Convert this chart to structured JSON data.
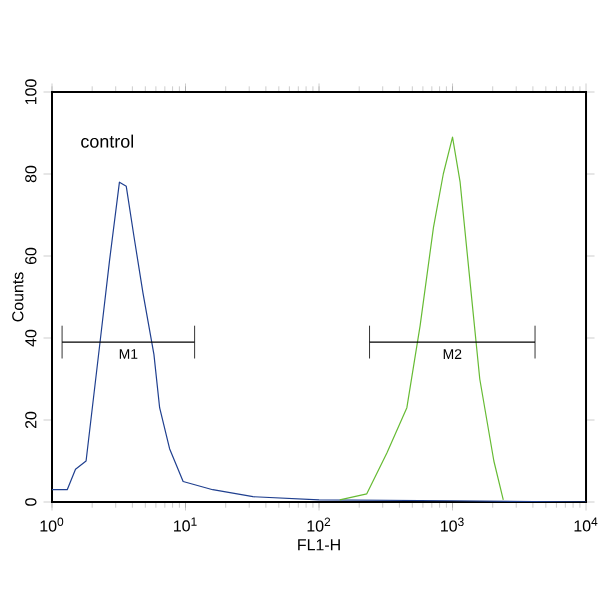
{
  "chart_data": {
    "type": "line",
    "xlabel": "FL1-H",
    "ylabel": "Counts",
    "log": "x",
    "xlim": [
      1,
      10000
    ],
    "ylim": [
      0,
      100
    ],
    "xticks": [
      {
        "value": 1,
        "label": "10$^{0}$"
      },
      {
        "value": 10,
        "label": "10$^{1}$"
      },
      {
        "value": 100,
        "label": "10$^{2}$"
      },
      {
        "value": 1000,
        "label": "10$^{3}$"
      },
      {
        "value": 10000,
        "label": "10$^{4}$"
      }
    ],
    "yticks": [
      0,
      20,
      40,
      60,
      80,
      100
    ],
    "annotations": [
      "control"
    ],
    "series": [
      {
        "color": "#1f3f8f",
        "x": [
          1,
          1.3,
          1.5,
          1.8,
          2.3,
          2.7,
          3.2,
          3.6,
          4.1,
          4.8,
          5.8,
          6.4,
          7.6,
          9.6,
          16,
          32,
          100,
          1000,
          10000
        ],
        "values": [
          3,
          3,
          8,
          10,
          39.5,
          59,
          78,
          77,
          65,
          51,
          36,
          23,
          13,
          5,
          3,
          1.3,
          0.5,
          0.3,
          0
        ]
      },
      {
        "color": "#66bb33",
        "x": [
          143,
          228,
          323,
          455,
          572,
          720,
          853,
          1000,
          1140,
          1350,
          1600,
          2040,
          2400
        ],
        "values": [
          0.5,
          2,
          12,
          23,
          43,
          67,
          80,
          89,
          78,
          54,
          30,
          10,
          0.5
        ]
      },
      {
        "name": "M1",
        "color": "#000000",
        "x": [
          1.19,
          11.7
        ],
        "values": [
          39,
          39
        ],
        "errors": [
          4,
          4
        ]
      },
      {
        "name": "M2",
        "color": "#000000",
        "x": [
          239,
          4150
        ],
        "values": [
          39,
          39
        ],
        "errors": [
          4,
          4
        ]
      }
    ]
  }
}
